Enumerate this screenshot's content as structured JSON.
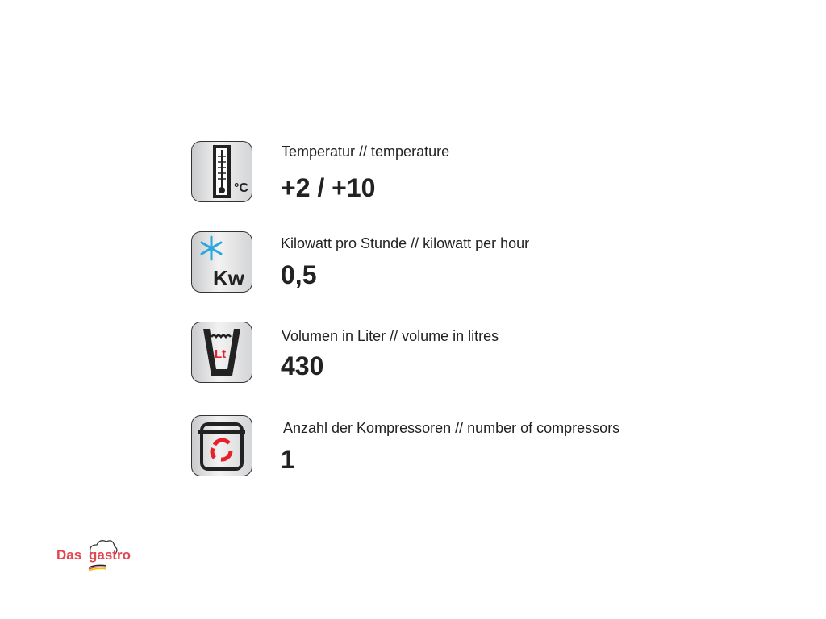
{
  "specs": [
    {
      "icon": "thermometer-icon",
      "label": "Temperatur // temperature",
      "value": "+2 / +10"
    },
    {
      "icon": "snowflake-kw-icon",
      "label": "Kilowatt pro Stunde // kilowatt per hour",
      "value": "0,5"
    },
    {
      "icon": "volume-litre-icon",
      "label": "Volumen in Liter // volume in litres",
      "value": "430"
    },
    {
      "icon": "compressor-icon",
      "label": "Anzahl der Kompressoren // number of compressors",
      "value": "1"
    }
  ],
  "icon_text": {
    "celsius": "°C",
    "kw": "Kw",
    "lt": "Lt"
  },
  "logo": {
    "text_left": "Das",
    "text_right": "gastro"
  },
  "colors": {
    "accent_red": "#e8202a",
    "snowflake_blue": "#29a8e0",
    "logo_red": "#e2474f"
  }
}
